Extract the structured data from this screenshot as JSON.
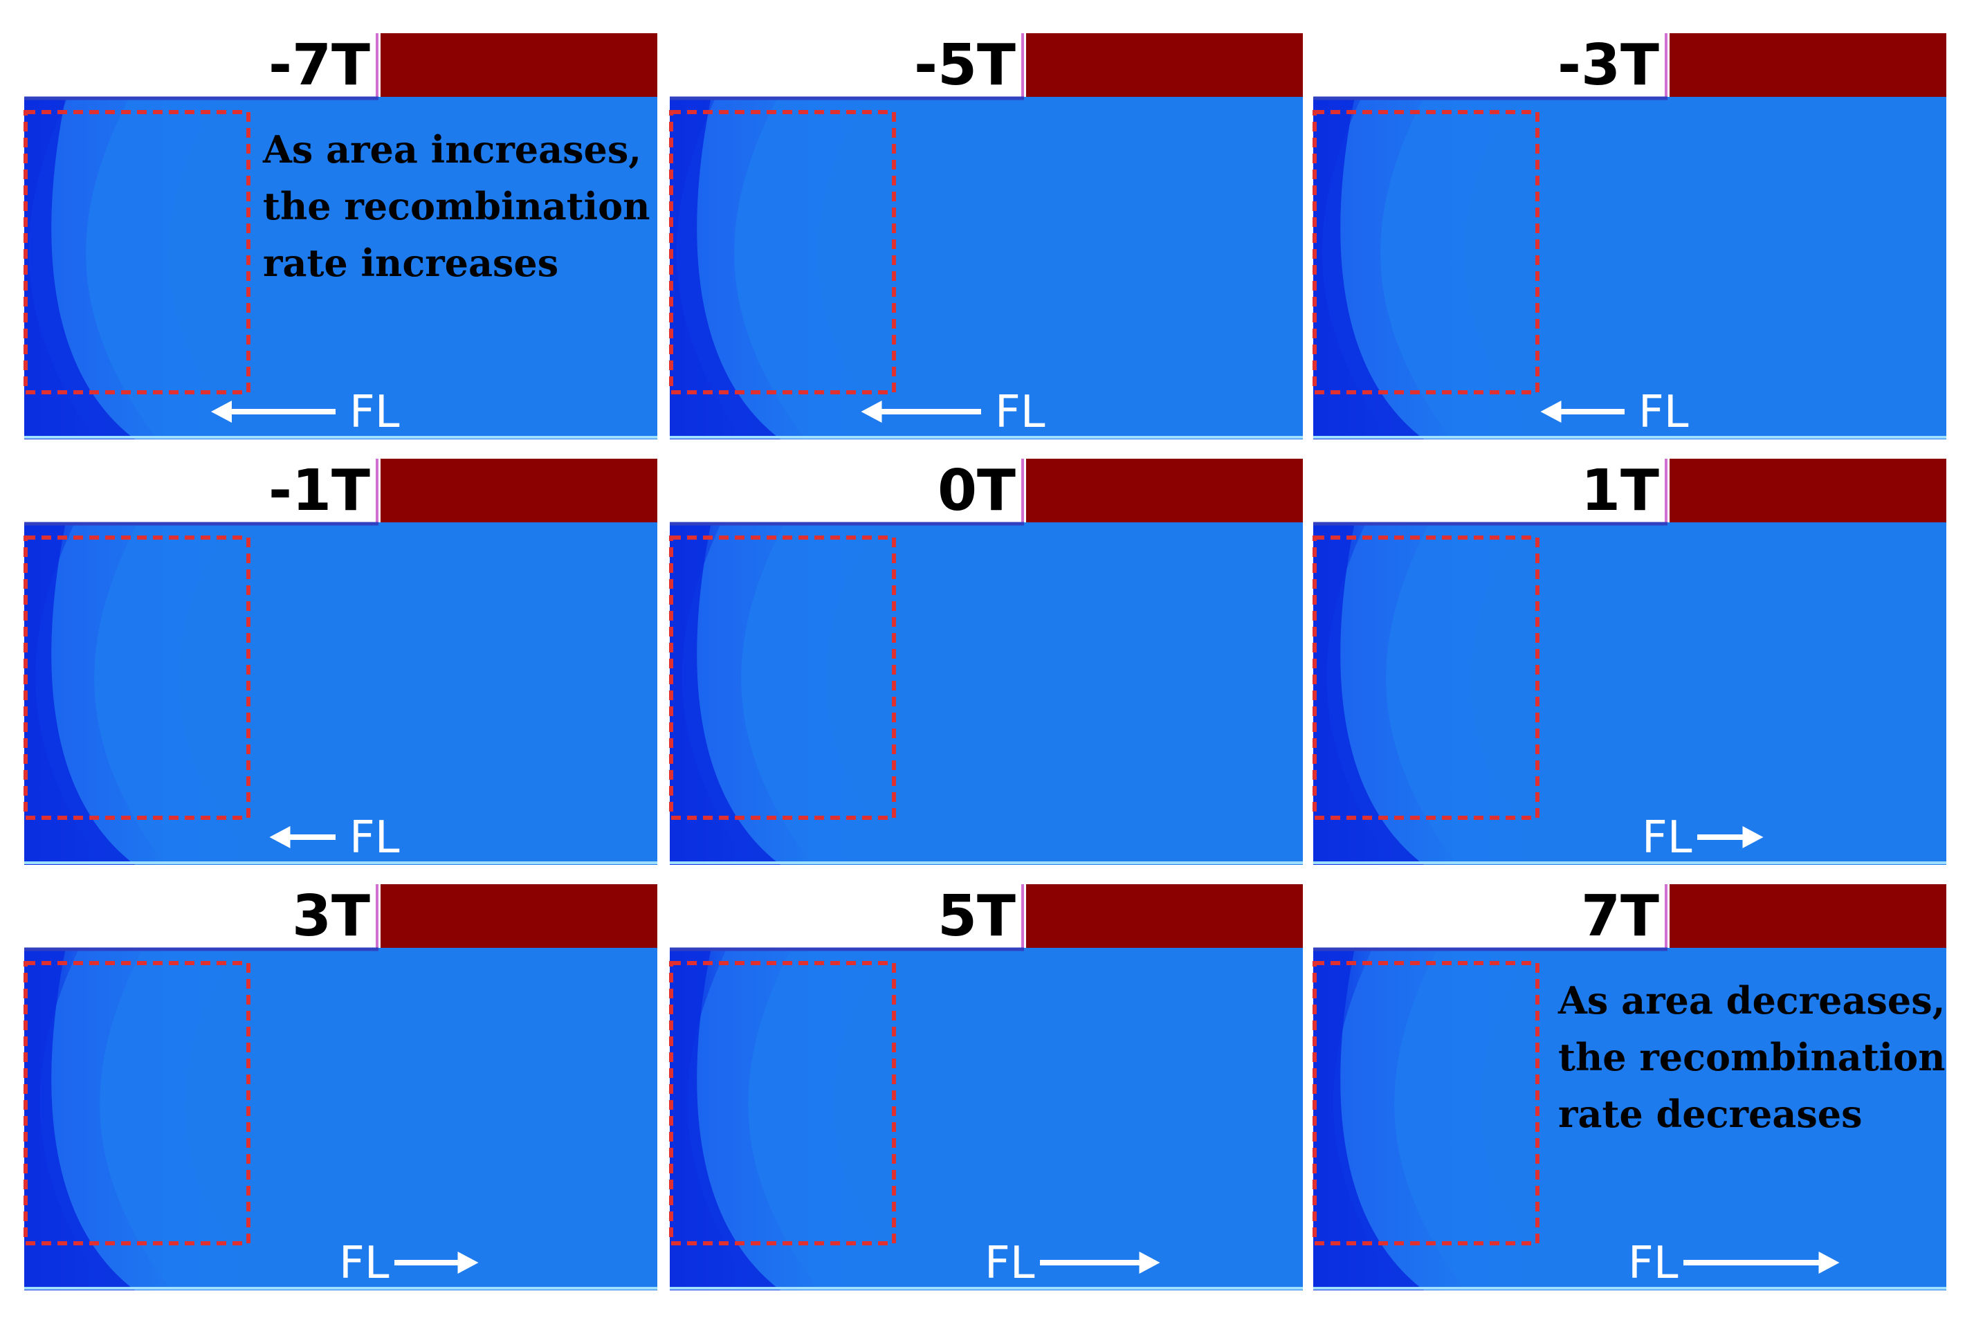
{
  "colors": {
    "electrode": "#8b0000",
    "region_box": "#e03030",
    "arrow": "#ffffff",
    "contour_scale": [
      "#0a2fe0",
      "#1e6cf0",
      "#20c8f0",
      "#00ff80",
      "#18e018",
      "#ffff00",
      "#ffa000",
      "#ff2a00"
    ]
  },
  "fl_label": "FL",
  "annotations": {
    "increase": [
      "As area increases,",
      "the recombination",
      "rate increases"
    ],
    "decrease": [
      "As area decreases,",
      "the recombination",
      "rate decreases"
    ]
  },
  "panels": [
    {
      "label": "-7T",
      "field": -7,
      "arrow_direction": "left",
      "arrow_strength": 1.0,
      "label_pos": "right"
    },
    {
      "label": "-5T",
      "field": -5,
      "arrow_direction": "left",
      "arrow_strength": 0.95,
      "label_pos": "right"
    },
    {
      "label": "-3T",
      "field": -3,
      "arrow_direction": "left",
      "arrow_strength": 0.55,
      "label_pos": "right"
    },
    {
      "label": "-1T",
      "field": -1,
      "arrow_direction": "left",
      "arrow_strength": 0.35,
      "label_pos": "right"
    },
    {
      "label": "0T",
      "field": 0,
      "arrow_direction": "none",
      "arrow_strength": 0,
      "label_pos": "right"
    },
    {
      "label": "1T",
      "field": 1,
      "arrow_direction": "right",
      "arrow_strength": 0.35,
      "label_pos": "left"
    },
    {
      "label": "3T",
      "field": 3,
      "arrow_direction": "right",
      "arrow_strength": 0.55,
      "label_pos": "left"
    },
    {
      "label": "5T",
      "field": 5,
      "arrow_direction": "right",
      "arrow_strength": 0.95,
      "label_pos": "left"
    },
    {
      "label": "7T",
      "field": 7,
      "arrow_direction": "right",
      "arrow_strength": 1.35,
      "label_pos": "left"
    }
  ]
}
